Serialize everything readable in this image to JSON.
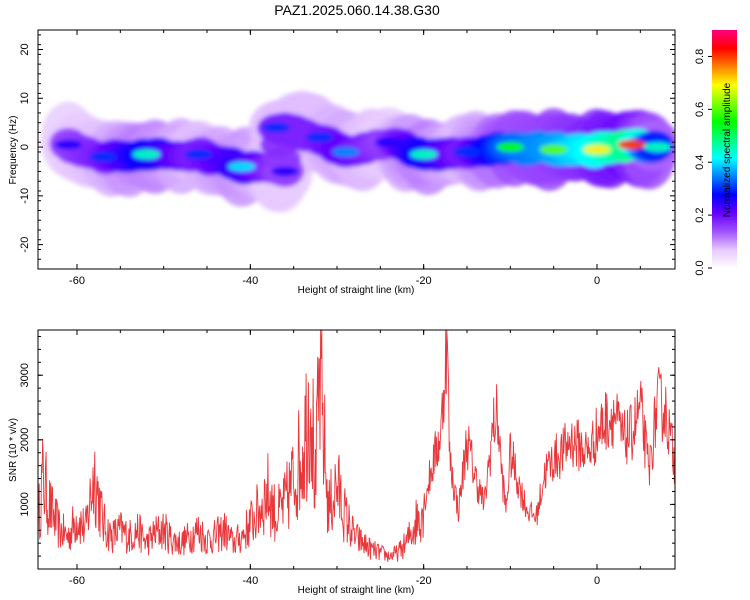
{
  "title": "PAZ1.2025.060.14.38.G30",
  "colors": {
    "axis": "#000000",
    "snr_line": "#e8383b",
    "background": "#ffffff"
  },
  "chart_data": [
    {
      "type": "heatmap",
      "name": "spectrogram",
      "xlabel": "Height of straight line (km)",
      "ylabel": "Frequency (Hz)",
      "xlim": [
        -64.5,
        9
      ],
      "ylim": [
        -25,
        24
      ],
      "x_ticks": [
        -60,
        -40,
        -20,
        0
      ],
      "y_ticks": [
        20,
        10,
        0,
        -10,
        -20
      ],
      "colorbar": {
        "label": "Normalized spectral amplitude",
        "range": [
          0,
          0.9
        ],
        "ticks": [
          0.0,
          0.2,
          0.4,
          0.6,
          0.8
        ],
        "colormap": [
          "#ffffff",
          "#e6c8ff",
          "#a050ff",
          "#6400ff",
          "#0000ff",
          "#0080ff",
          "#00ffff",
          "#00ff80",
          "#00ff00",
          "#80ff00",
          "#ffff00",
          "#ff8000",
          "#ff0000",
          "#ff0080"
        ]
      },
      "features": [
        {
          "x": -61,
          "y": 0.5,
          "amplitude": 0.25
        },
        {
          "x": -57,
          "y": -2,
          "amplitude": 0.3
        },
        {
          "x": -52,
          "y": -1.5,
          "amplitude": 0.45
        },
        {
          "x": -46,
          "y": -1.5,
          "amplitude": 0.3
        },
        {
          "x": -41,
          "y": -4,
          "amplitude": 0.4
        },
        {
          "x": -36,
          "y": -5,
          "amplitude": 0.25
        },
        {
          "x": -37,
          "y": 4,
          "amplitude": 0.3
        },
        {
          "x": -32,
          "y": 2,
          "amplitude": 0.3
        },
        {
          "x": -29,
          "y": -1,
          "amplitude": 0.35
        },
        {
          "x": -24,
          "y": 1,
          "amplitude": 0.25
        },
        {
          "x": -20,
          "y": -1.5,
          "amplitude": 0.45
        },
        {
          "x": -15,
          "y": -1,
          "amplitude": 0.3
        },
        {
          "x": -10,
          "y": 0,
          "amplitude": 0.55
        },
        {
          "x": -5,
          "y": -0.5,
          "amplitude": 0.6
        },
        {
          "x": 0,
          "y": -0.5,
          "amplitude": 0.7
        },
        {
          "x": 4,
          "y": 0.5,
          "amplitude": 0.8
        },
        {
          "x": 7,
          "y": 0,
          "amplitude": 0.45
        }
      ]
    },
    {
      "type": "line",
      "name": "snr",
      "xlabel": "Height of straight line (km)",
      "ylabel": "SNR (10 * v/v)",
      "xlim": [
        -64.5,
        9
      ],
      "ylim": [
        0,
        3700
      ],
      "x_ticks": [
        -60,
        -40,
        -20,
        0
      ],
      "y_ticks": [
        1000,
        2000,
        3000
      ],
      "series": [
        {
          "x": [
            -64.5,
            -64,
            -63,
            -62,
            -61,
            -60,
            -59,
            -58,
            -57,
            -56,
            -55,
            -54,
            -53,
            -52,
            -51,
            -50,
            -49,
            -48,
            -47,
            -46,
            -45,
            -44,
            -43,
            -42,
            -41,
            -40,
            -39,
            -38,
            -37,
            -36,
            -35,
            -34,
            -33,
            -32.5,
            -32,
            -31,
            -30,
            -29,
            -28,
            -27,
            -26,
            -25,
            -24,
            -23,
            -22,
            -21,
            -20,
            -19,
            -18,
            -17.3,
            -17,
            -16,
            -15,
            -14,
            -13,
            -12,
            -11.5,
            -11,
            -10.5,
            -10,
            -9,
            -8,
            -7,
            -6,
            -5,
            -4,
            -3,
            -2,
            -1,
            0,
            1,
            2,
            3,
            4,
            5,
            6,
            7,
            8,
            9
          ],
          "y": [
            700,
            1400,
            900,
            600,
            500,
            800,
            600,
            1500,
            700,
            500,
            600,
            500,
            600,
            400,
            550,
            600,
            450,
            400,
            500,
            600,
            450,
            500,
            600,
            400,
            500,
            700,
            900,
            1200,
            800,
            1000,
            1400,
            1800,
            2800,
            1200,
            3000,
            900,
            1300,
            800,
            500,
            400,
            300,
            250,
            200,
            250,
            400,
            700,
            1000,
            1600,
            2100,
            3650,
            1700,
            900,
            2000,
            1400,
            1000,
            2200,
            2400,
            1500,
            900,
            1800,
            1300,
            900,
            800,
            1500,
            1700,
            1800,
            2000,
            1900,
            1800,
            2100,
            2300,
            2400,
            2000,
            2100,
            2500,
            1500,
            2600,
            2400,
            1600
          ]
        }
      ]
    }
  ]
}
